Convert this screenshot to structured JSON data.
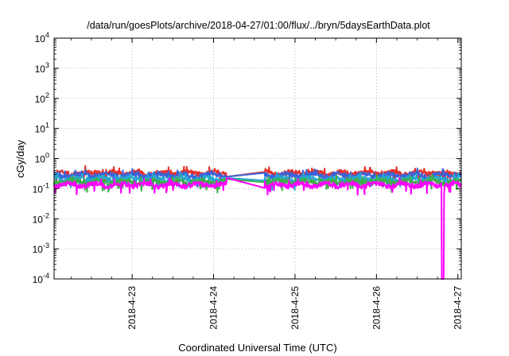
{
  "chart_data": {
    "type": "line",
    "title": "/data/run/goesPlots/archive/2018-04-27/01:00/flux/../bryn/5daysEarthData.plot",
    "xlabel": "Coordinated Universal Time (UTC)",
    "ylabel": "cGy/day",
    "y_scale": "log",
    "ylim": [
      0.0001,
      10000
    ],
    "y_ticks": [
      {
        "value": 0.0001,
        "base": "10",
        "exp": "-4"
      },
      {
        "value": 0.001,
        "base": "10",
        "exp": "-3"
      },
      {
        "value": 0.01,
        "base": "10",
        "exp": "-2"
      },
      {
        "value": 0.1,
        "base": "10",
        "exp": "-1"
      },
      {
        "value": 1,
        "base": "10",
        "exp": "0"
      },
      {
        "value": 10,
        "base": "10",
        "exp": "1"
      },
      {
        "value": 100,
        "base": "10",
        "exp": "2"
      },
      {
        "value": 1000,
        "base": "10",
        "exp": "3"
      },
      {
        "value": 10000,
        "base": "10",
        "exp": "4"
      }
    ],
    "xlim": [
      "2018-04-22 01:00",
      "2018-04-27 01:00"
    ],
    "x_ticks": [
      "2018-4-23",
      "2018-4-24",
      "2018-4-25",
      "2018-4-26",
      "2018-4-27"
    ],
    "grid": true,
    "data_gap": {
      "start": "2018-04-24 04:00",
      "end": "2018-04-24 15:00"
    },
    "dropout": {
      "time": "2018-04-26 19:30",
      "value": 0.0001
    },
    "series": [
      {
        "color": "#e8302a",
        "base_value": 0.33
      },
      {
        "color": "#3b63d8",
        "base_value": 0.28
      },
      {
        "color": "#27a8cf",
        "base_value": 0.21
      },
      {
        "color": "#3cb04a",
        "base_value": 0.17
      },
      {
        "color": "#ff00ff",
        "base_value": 0.135
      }
    ]
  }
}
